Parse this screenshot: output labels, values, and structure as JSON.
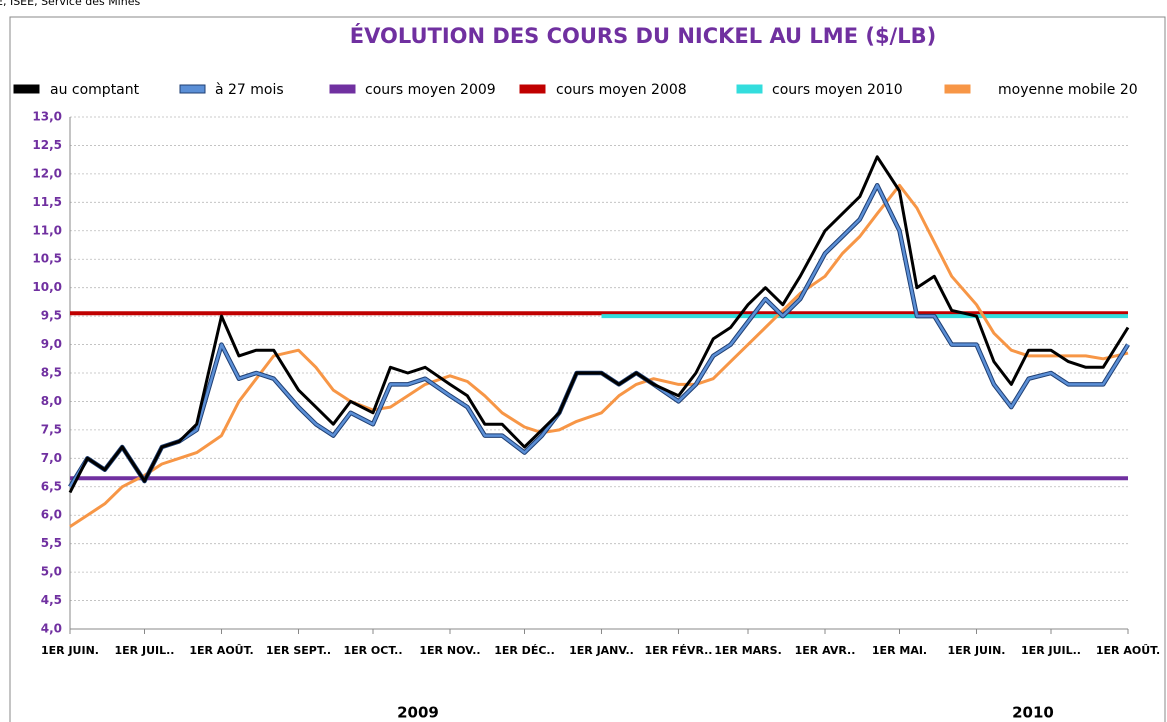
{
  "chart_data": {
    "type": "line",
    "source": "E, ISEE, Service des Mines",
    "title": "ÉVOLUTION DES COURS DU NICKEL AU LME ($/LB)",
    "legend": "top",
    "grid": true,
    "x": [
      "2009-06-01",
      "2009-06-08",
      "2009-06-15",
      "2009-06-22",
      "2009-07-01",
      "2009-07-08",
      "2009-07-15",
      "2009-07-22",
      "2009-08-01",
      "2009-08-08",
      "2009-08-15",
      "2009-08-22",
      "2009-09-01",
      "2009-09-08",
      "2009-09-15",
      "2009-09-22",
      "2009-10-01",
      "2009-10-08",
      "2009-10-15",
      "2009-10-22",
      "2009-11-01",
      "2009-11-08",
      "2009-11-15",
      "2009-11-22",
      "2009-12-01",
      "2009-12-08",
      "2009-12-15",
      "2009-12-22",
      "2010-01-01",
      "2010-01-08",
      "2010-01-15",
      "2010-01-22",
      "2010-02-01",
      "2010-02-08",
      "2010-02-15",
      "2010-02-22",
      "2010-03-01",
      "2010-03-08",
      "2010-03-15",
      "2010-03-22",
      "2010-04-01",
      "2010-04-08",
      "2010-04-15",
      "2010-04-22",
      "2010-05-01",
      "2010-05-08",
      "2010-05-15",
      "2010-05-22",
      "2010-06-01",
      "2010-06-08",
      "2010-06-15",
      "2010-06-22",
      "2010-07-01",
      "2010-07-08",
      "2010-07-15",
      "2010-07-22",
      "2010-08-01"
    ],
    "xlim": [
      "2009-06-01",
      "2010-08-01"
    ],
    "xticks": [
      {
        "value": "2009-06-01",
        "label": "1ER JUIN."
      },
      {
        "value": "2009-07-01",
        "label": "1ER JUIL.."
      },
      {
        "value": "2009-08-01",
        "label": "1ER AOÛT."
      },
      {
        "value": "2009-09-01",
        "label": "1ER SEPT.."
      },
      {
        "value": "2009-10-01",
        "label": "1ER OCT.."
      },
      {
        "value": "2009-11-01",
        "label": "1ER NOV.."
      },
      {
        "value": "2009-12-01",
        "label": "1ER DÉC.."
      },
      {
        "value": "2010-01-01",
        "label": "1ER JANV.."
      },
      {
        "value": "2010-02-01",
        "label": "1ER FÉVR.."
      },
      {
        "value": "2010-03-01",
        "label": "1ER MARS."
      },
      {
        "value": "2010-04-01",
        "label": "1ER AVR.."
      },
      {
        "value": "2010-05-01",
        "label": "1ER MAI."
      },
      {
        "value": "2010-06-01",
        "label": "1ER JUIN."
      },
      {
        "value": "2010-07-01",
        "label": "1ER JUIL.."
      },
      {
        "value": "2010-08-01",
        "label": "1ER AOÛT."
      }
    ],
    "year_labels": [
      "2009",
      "2010"
    ],
    "ylim": [
      4,
      13
    ],
    "yticks": [
      {
        "value": 4,
        "label": "4,0"
      },
      {
        "value": 4.5,
        "label": "4,5"
      },
      {
        "value": 5,
        "label": "5,0"
      },
      {
        "value": 5.5,
        "label": "5,5"
      },
      {
        "value": 6,
        "label": "6,0"
      },
      {
        "value": 6.5,
        "label": "6,5"
      },
      {
        "value": 7,
        "label": "7,0"
      },
      {
        "value": 7.5,
        "label": "7,5"
      },
      {
        "value": 8,
        "label": "8,0"
      },
      {
        "value": 8.5,
        "label": "8,5"
      },
      {
        "value": 9,
        "label": "9,0"
      },
      {
        "value": 9.5,
        "label": "9,5"
      },
      {
        "value": 10,
        "label": "10,0"
      },
      {
        "value": 10.5,
        "label": "10,5"
      },
      {
        "value": 11,
        "label": "11,0"
      },
      {
        "value": 11.5,
        "label": "11,5"
      },
      {
        "value": 12,
        "label": "12,0"
      },
      {
        "value": 12.5,
        "label": "12,5"
      },
      {
        "value": 13,
        "label": "13,0"
      }
    ],
    "series": [
      {
        "name": "au comptant",
        "color": "#000000",
        "values": [
          6.4,
          7.0,
          6.8,
          7.2,
          6.6,
          7.2,
          7.3,
          7.6,
          9.5,
          8.8,
          8.9,
          8.9,
          8.2,
          7.9,
          7.6,
          8.0,
          7.8,
          8.6,
          8.5,
          8.6,
          8.3,
          8.1,
          7.6,
          7.6,
          7.2,
          7.5,
          7.8,
          8.5,
          8.5,
          8.3,
          8.5,
          8.3,
          8.1,
          8.5,
          9.1,
          9.3,
          9.7,
          10.0,
          9.7,
          10.2,
          11.0,
          11.3,
          11.6,
          12.3,
          11.7,
          10.0,
          10.2,
          9.6,
          9.5,
          8.7,
          8.3,
          8.9,
          8.9,
          8.7,
          8.6,
          8.6,
          9.3
        ]
      },
      {
        "name": "à 27 mois",
        "color": "#5b8fd6",
        "values": [
          6.5,
          7.0,
          6.8,
          7.2,
          6.6,
          7.2,
          7.3,
          7.5,
          9.0,
          8.4,
          8.5,
          8.4,
          7.9,
          7.6,
          7.4,
          7.8,
          7.6,
          8.3,
          8.3,
          8.4,
          8.1,
          7.9,
          7.4,
          7.4,
          7.1,
          7.4,
          7.8,
          8.5,
          8.5,
          8.3,
          8.5,
          8.3,
          8.0,
          8.3,
          8.8,
          9.0,
          9.4,
          9.8,
          9.5,
          9.8,
          10.6,
          10.9,
          11.2,
          11.8,
          11.0,
          9.5,
          9.5,
          9.0,
          9.0,
          8.3,
          7.9,
          8.4,
          8.5,
          8.3,
          8.3,
          8.3,
          9.0
        ]
      },
      {
        "name": "cours moyen 2009",
        "color": "#7030a0",
        "x": [
          "2009-06-01",
          "2010-08-01"
        ],
        "values": [
          6.65,
          6.65
        ]
      },
      {
        "name": "cours moyen 2008",
        "color": "#c00000",
        "x": [
          "2009-06-01",
          "2010-08-01"
        ],
        "values": [
          9.55,
          9.55
        ]
      },
      {
        "name": "cours moyen 2010",
        "color": "#33dddd",
        "x": [
          "2010-01-01",
          "2010-08-01"
        ],
        "values": [
          9.5,
          9.5
        ]
      },
      {
        "name": "moyenne mobile 20",
        "color": "#f79646",
        "values": [
          5.8,
          6.0,
          6.2,
          6.5,
          6.7,
          6.9,
          7.0,
          7.1,
          7.4,
          8.0,
          8.4,
          8.8,
          8.9,
          8.6,
          8.2,
          8.0,
          7.85,
          7.9,
          8.1,
          8.3,
          8.45,
          8.35,
          8.1,
          7.8,
          7.55,
          7.45,
          7.5,
          7.65,
          7.8,
          8.1,
          8.3,
          8.4,
          8.3,
          8.3,
          8.4,
          8.7,
          9.0,
          9.3,
          9.6,
          9.9,
          10.2,
          10.6,
          10.9,
          11.3,
          11.8,
          11.4,
          10.8,
          10.2,
          9.7,
          9.2,
          8.9,
          8.8,
          8.8,
          8.8,
          8.8,
          8.75,
          8.85
        ]
      }
    ]
  }
}
